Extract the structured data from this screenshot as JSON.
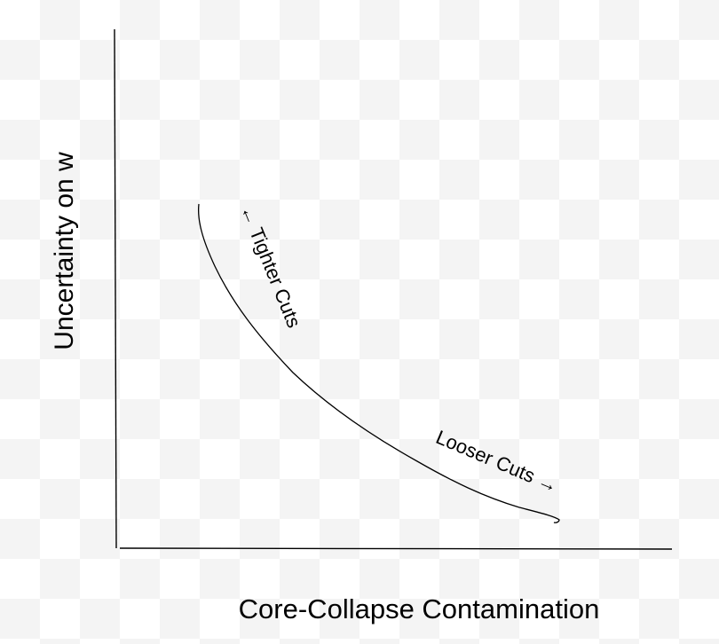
{
  "diagram": {
    "xlabel": "Core-Collapse Contamination",
    "ylabel": "Uncertainty on w",
    "annotations": {
      "tighter": "← Tighter Cuts",
      "looser": "Looser Cuts →"
    },
    "colors": {
      "ink": "#000000",
      "checker_light": "#ffffff",
      "checker_dark": "#f4f4f4"
    }
  }
}
